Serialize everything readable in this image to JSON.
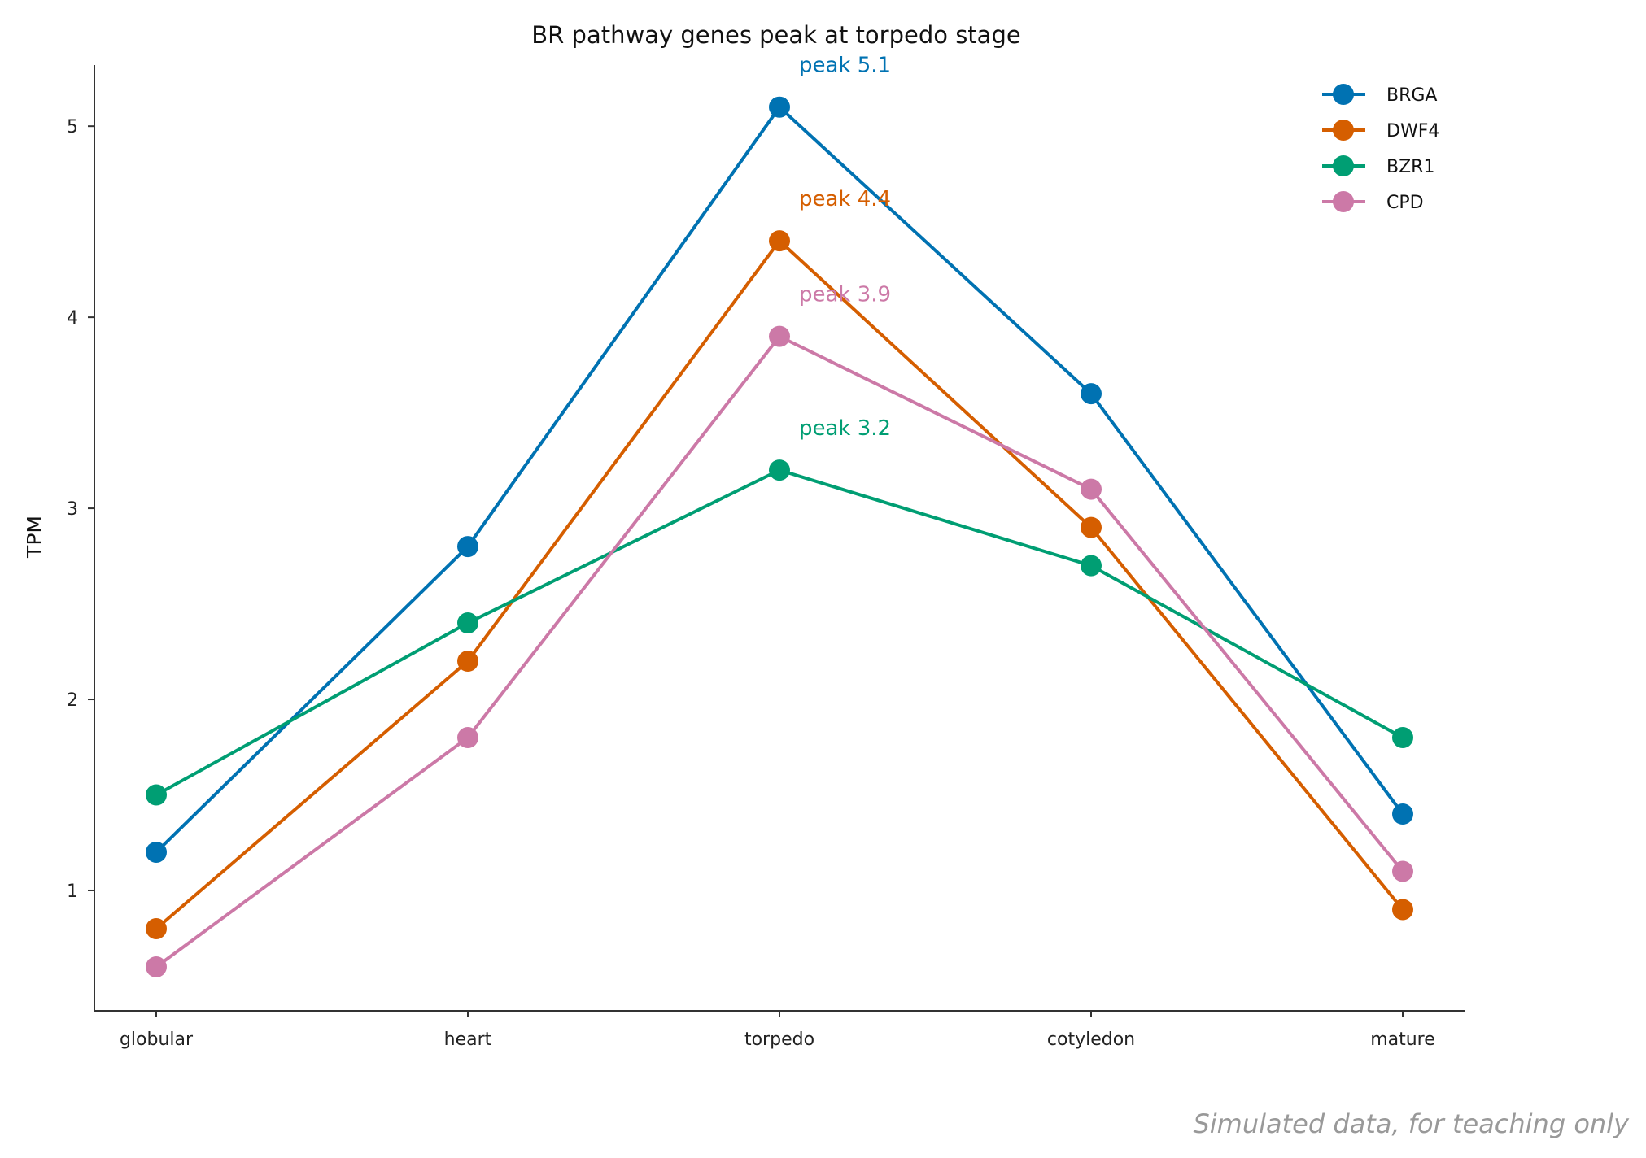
{
  "chart_data": {
    "type": "line",
    "title": "BR pathway genes peak at torpedo stage",
    "xlabel": "",
    "ylabel": "TPM",
    "categories": [
      "globular",
      "heart",
      "torpedo",
      "cotyledon",
      "mature"
    ],
    "ylim": [
      0.37,
      5.32
    ],
    "yticks": [
      1,
      2,
      3,
      4,
      5
    ],
    "grid": false,
    "legend_position": "top-right",
    "series": [
      {
        "name": "BRGA",
        "color": "#0072b2",
        "values": [
          1.2,
          2.8,
          5.1,
          3.6,
          1.4
        ],
        "peak_label": "peak 5.1"
      },
      {
        "name": "DWF4",
        "color": "#d55e00",
        "values": [
          0.8,
          2.2,
          4.4,
          2.9,
          0.9
        ],
        "peak_label": "peak 4.4"
      },
      {
        "name": "BZR1",
        "color": "#009e73",
        "values": [
          1.5,
          2.4,
          3.2,
          2.7,
          1.8
        ],
        "peak_label": "peak 3.2"
      },
      {
        "name": "CPD",
        "color": "#cc79a7",
        "values": [
          0.6,
          1.8,
          3.9,
          3.1,
          1.1
        ],
        "peak_label": "peak 3.9"
      }
    ],
    "footnote": "Simulated data, for teaching only"
  }
}
